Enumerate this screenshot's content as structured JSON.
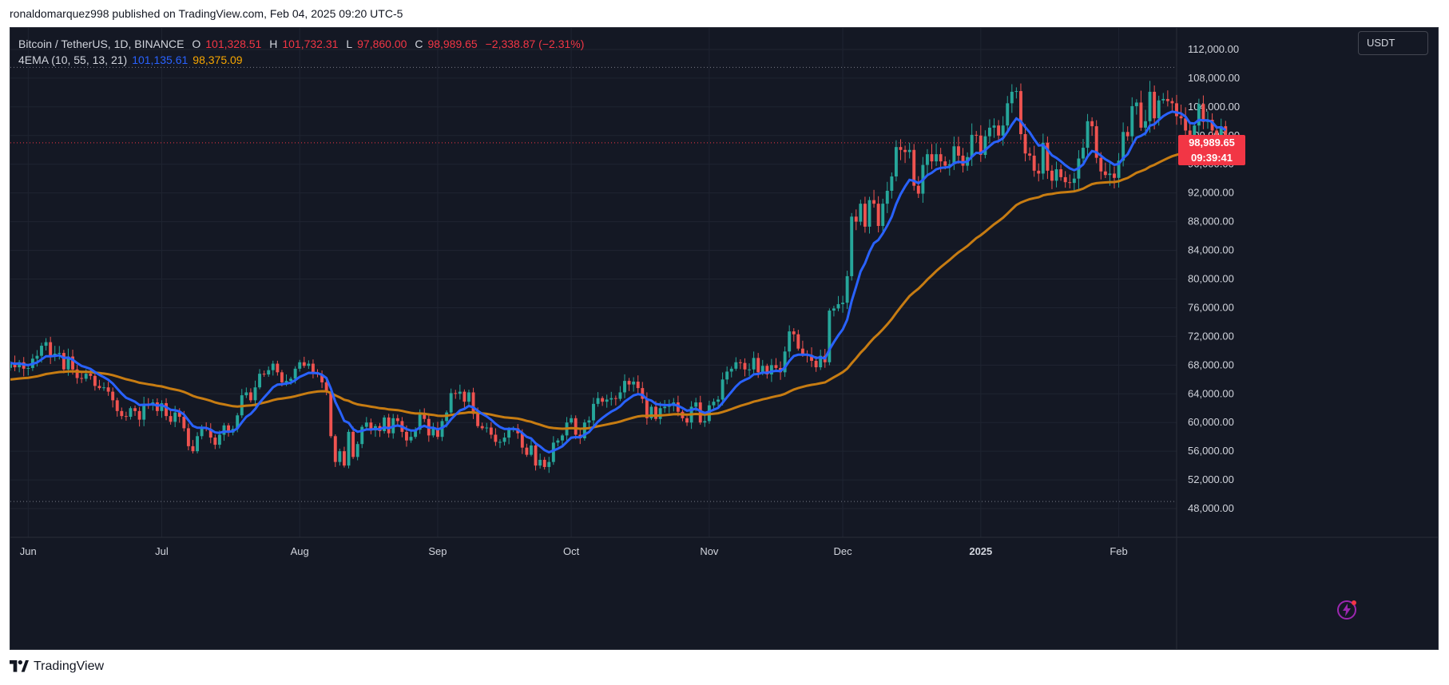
{
  "header": {
    "caption": "ronaldomarquez998 published on TradingView.com, Feb 04, 2025 09:20 UTC-5"
  },
  "legend": {
    "symbol": "Bitcoin / TetherUS, 1D, BINANCE",
    "open_label": "O",
    "open": "101,328.51",
    "high_label": "H",
    "high": "101,732.31",
    "low_label": "L",
    "low": "97,860.00",
    "close_label": "C",
    "close": "98,989.65",
    "change": "−2,338.87 (−2.31%)",
    "indicator": "4EMA (10, 55, 13, 21)",
    "ema_fast": "101,135.61",
    "ema_slow": "98,375.09"
  },
  "currency_button": "USDT",
  "last_price": {
    "price": "98,989.65",
    "countdown": "09:39:41"
  },
  "footer": {
    "brand": "TradingView"
  },
  "colors": {
    "up": "#26a69a",
    "down": "#ef5350",
    "ema_fast": "#2962ff",
    "ema_slow": "#c77c12",
    "background": "#141824",
    "last_price": "#f23645"
  },
  "icons": {
    "bolt": "lightning-bolt-icon",
    "logo": "tradingview-logo-icon"
  },
  "chart_data": {
    "type": "candlestick",
    "title": "Bitcoin / TetherUS, 1D, BINANCE",
    "y_axis": {
      "position": "right",
      "ticks": [
        48000,
        52000,
        56000,
        60000,
        64000,
        68000,
        72000,
        76000,
        80000,
        84000,
        88000,
        92000,
        96000,
        100000,
        104000,
        108000,
        112000
      ],
      "tick_labels": [
        "48,000.00",
        "52,000.00",
        "56,000.00",
        "60,000.00",
        "64,000.00",
        "68,000.00",
        "72,000.00",
        "76,000.00",
        "80,000.00",
        "84,000.00",
        "88,000.00",
        "92,000.00",
        "96,000.00",
        "100,000.00",
        "104,000.00",
        "108,000.00",
        "112,000.00"
      ],
      "range": [
        44000,
        115000
      ]
    },
    "x_axis": {
      "labels": [
        "Jun",
        "Jul",
        "Aug",
        "Sep",
        "Oct",
        "Nov",
        "Dec",
        "2025",
        "Feb"
      ],
      "label_dates": [
        "2024-06-01",
        "2024-07-01",
        "2024-08-01",
        "2024-09-01",
        "2024-10-01",
        "2024-11-01",
        "2024-12-01",
        "2025-01-01",
        "2025-02-01"
      ],
      "range": [
        "2024-05-28",
        "2025-02-14"
      ]
    },
    "horizontal_lines": [
      {
        "value": 109500,
        "style": "dotted"
      },
      {
        "value": 49000,
        "style": "dotted"
      },
      {
        "value": 98989.65,
        "style": "dotted",
        "role": "last price"
      }
    ],
    "series": [
      {
        "name": "Bitcoin / TetherUS",
        "kind": "close",
        "start_date": "2024-05-28",
        "closes": [
          68300,
          67700,
          68400,
          67500,
          67600,
          68900,
          69300,
          70700,
          71200,
          69200,
          69600,
          69700,
          67400,
          69200,
          67400,
          66200,
          66100,
          66800,
          66500,
          65100,
          64800,
          64900,
          64300,
          63100,
          61600,
          60900,
          60800,
          62000,
          61600,
          60400,
          62600,
          62500,
          62800,
          61600,
          62700,
          60900,
          60100,
          61400,
          60800,
          59200,
          56700,
          56000,
          58100,
          59300,
          59100,
          57900,
          56900,
          58300,
          59600,
          58600,
          59100,
          61000,
          63800,
          64200,
          63100,
          64900,
          66800,
          66700,
          67300,
          68200,
          67000,
          65600,
          65800,
          66100,
          67500,
          68400,
          67900,
          68200,
          66900,
          66700,
          65600,
          64200,
          58100,
          54500,
          56000,
          54000,
          58700,
          55200,
          57000,
          59400,
          60000,
          58900,
          59500,
          58800,
          60700,
          58500,
          60600,
          60200,
          58700,
          57500,
          58000,
          59000,
          61200,
          60500,
          58200,
          59200,
          58000,
          60200,
          61400,
          64100,
          64000,
          64300,
          62900,
          64200,
          61200,
          59500,
          59200,
          59300,
          58300,
          57300,
          57300,
          57900,
          59100,
          59200,
          58500,
          56500,
          55500,
          56800,
          54000,
          54800,
          53800,
          54500,
          57200,
          57500,
          58200,
          60000,
          60600,
          58300,
          57800,
          60000,
          60300,
          62600,
          63400,
          62900,
          63200,
          63400,
          63300,
          64200,
          65800,
          65300,
          65700,
          64800,
          63300,
          60600,
          62200,
          60500,
          62000,
          62200,
          62500,
          62800,
          61500,
          60600,
          60000,
          62200,
          62800,
          60000,
          60200,
          62400,
          62900,
          63200,
          66000,
          67100,
          67500,
          68400,
          68300,
          67400,
          67400,
          69000,
          67000,
          67900,
          66700,
          68000,
          67600,
          67000,
          69900,
          72700,
          72300,
          70300,
          69500,
          69400,
          68600,
          67700,
          69300,
          68400,
          75600,
          75900,
          76500,
          76700,
          80400,
          88700,
          88000,
          90500,
          87300,
          91000,
          90500,
          87400,
          90500,
          92300,
          94300,
          98400,
          98000,
          97700,
          98000,
          93000,
          91900,
          95900,
          97400,
          96400,
          97400,
          96400,
          95800,
          96000,
          98500,
          97200,
          95800,
          97000,
          100100,
          100000,
          97300,
          99900,
          101100,
          101400,
          100000,
          101400,
          104500,
          106100,
          106200,
          100200,
          97500,
          97200,
          95100,
          94700,
          99000,
          95100,
          93700,
          95300,
          94200,
          93500,
          93400,
          94000,
          96800,
          98300,
          102000,
          101300,
          96900,
          95000,
          94500,
          94700,
          94100,
          96500,
          100500,
          99900,
          104100,
          104600,
          101100,
          102000,
          106100,
          102400,
          104900,
          105100,
          104800,
          104500,
          102700,
          102400,
          100700,
          97700,
          101400,
          104400,
          101900,
          102200,
          100700,
          97700,
          101300,
          98989.65
        ]
      },
      {
        "name": "4EMA (10, 55, 13, 21)",
        "value_last": 101135.61
      },
      {
        "name": "4EMA (10, 55, 13, 21)",
        "value_last": 98375.09
      }
    ],
    "grid": true,
    "legend_position": "top-left"
  }
}
